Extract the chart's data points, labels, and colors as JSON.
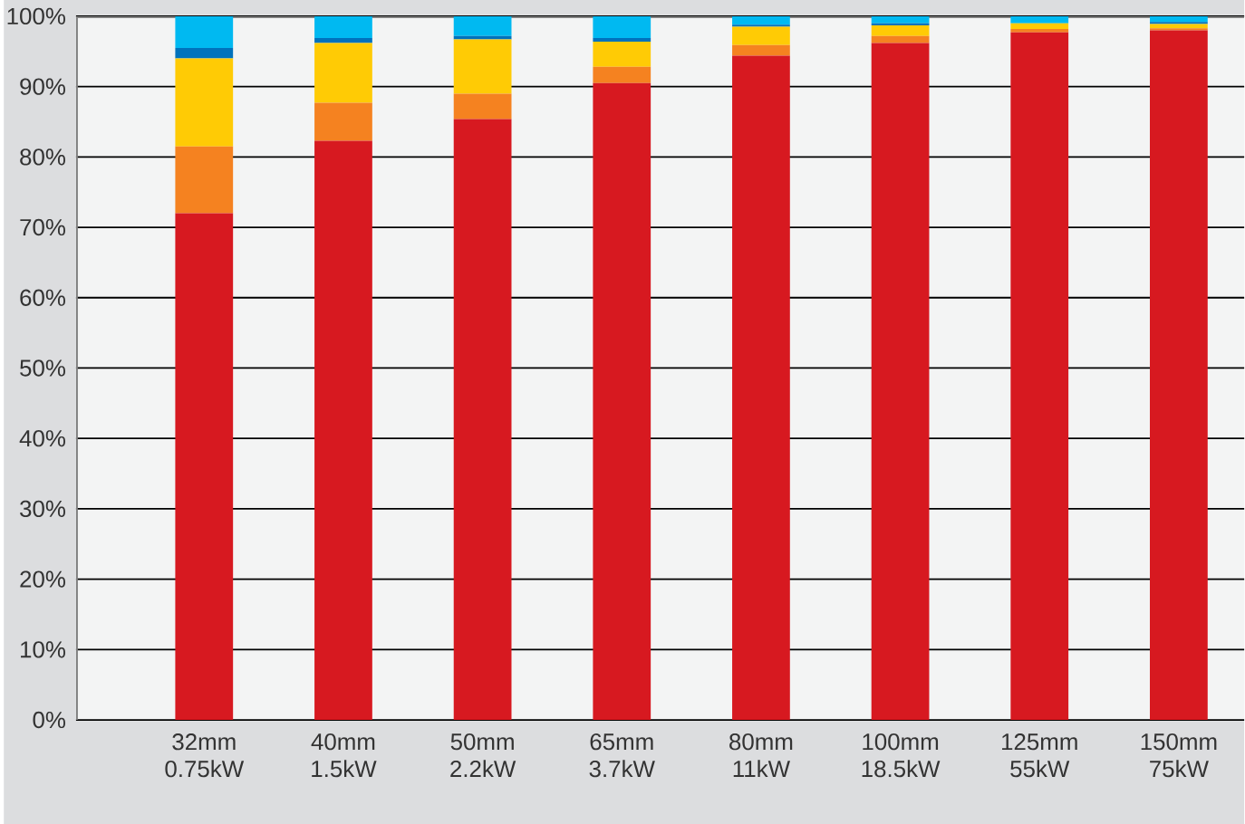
{
  "chart_data": {
    "type": "bar",
    "stacked": true,
    "categories": [
      "32mm 0.75kW",
      "40mm 1.5kW",
      "50mm 2.2kW",
      "65mm 3.7kW",
      "80mm 11kW",
      "100mm 18.5kW",
      "125mm 55kW",
      "150mm 75kW"
    ],
    "series": [
      {
        "color": "#d71920",
        "values": [
          72,
          82.3,
          85.4,
          90.5,
          94.4,
          96.2,
          97.7,
          98
        ]
      },
      {
        "color": "#f58220",
        "values": [
          9.5,
          5.4,
          3.6,
          2.3,
          1.5,
          1,
          0.5,
          0.3
        ]
      },
      {
        "color": "#ffcb05",
        "values": [
          12.5,
          8.5,
          7.7,
          3.6,
          2.6,
          1.5,
          0.8,
          0.6
        ]
      },
      {
        "color": "#0072bc",
        "values": [
          1.5,
          0.7,
          0.5,
          0.5,
          0.3,
          0.3,
          0,
          0.3
        ]
      },
      {
        "color": "#00b9f1",
        "values": [
          4.5,
          3.1,
          2.8,
          3.1,
          1.2,
          1,
          1,
          0.8
        ]
      }
    ],
    "ylim": [
      0,
      100
    ],
    "yticks": [
      {
        "value": 0,
        "label": "0%"
      },
      {
        "value": 10,
        "label": "10%"
      },
      {
        "value": 20,
        "label": "20%"
      },
      {
        "value": 30,
        "label": "30%"
      },
      {
        "value": 40,
        "label": "40%"
      },
      {
        "value": 50,
        "label": "50%"
      },
      {
        "value": 60,
        "label": "60%"
      },
      {
        "value": 70,
        "label": "70%"
      },
      {
        "value": 80,
        "label": "80%"
      },
      {
        "value": 90,
        "label": "90%"
      },
      {
        "value": 100,
        "label": "100%"
      }
    ],
    "grid": "y"
  }
}
